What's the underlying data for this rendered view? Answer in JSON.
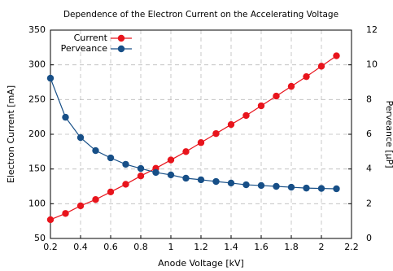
{
  "chart_data": {
    "type": "line",
    "title": "Dependence of the Electron Current on the Accelerating Voltage",
    "x_label": "Anode Voltage [kV]",
    "y_label": "Electron Current [mA]",
    "y2_label": "Perveance [µP]",
    "x": [
      0.2,
      0.3,
      0.4,
      0.5,
      0.6,
      0.7,
      0.8,
      0.9,
      1.0,
      1.1,
      1.2,
      1.3,
      1.4,
      1.5,
      1.6,
      1.7,
      1.8,
      1.9,
      2.0,
      2.1
    ],
    "series": [
      {
        "name": "Current",
        "color": "#e8141c",
        "values": [
          77,
          86,
          97,
          106,
          117,
          128,
          140,
          151,
          163,
          175,
          188,
          201,
          214,
          227,
          241,
          255,
          269,
          283,
          298,
          313
        ]
      },
      {
        "name": "Perveance",
        "color": "#174f87",
        "axis": "y2",
        "values": [
          9.23,
          6.98,
          5.81,
          5.06,
          4.64,
          4.27,
          4.03,
          3.8,
          3.66,
          3.47,
          3.38,
          3.28,
          3.19,
          3.09,
          3.05,
          3.0,
          2.95,
          2.9,
          2.88,
          2.86
        ]
      }
    ],
    "xlim": [
      0.2,
      2.2
    ],
    "xticks": [
      0.2,
      0.4,
      0.6,
      0.8,
      1,
      1.2,
      1.4,
      1.6,
      1.8,
      2,
      2.2
    ],
    "ylim": [
      50,
      350
    ],
    "yticks": [
      50,
      100,
      150,
      200,
      250,
      300,
      350
    ],
    "y2lim": [
      0,
      12
    ],
    "y2ticks": [
      0,
      2,
      4,
      6,
      8,
      10,
      12
    ],
    "grid": true,
    "legend": "top-left"
  }
}
